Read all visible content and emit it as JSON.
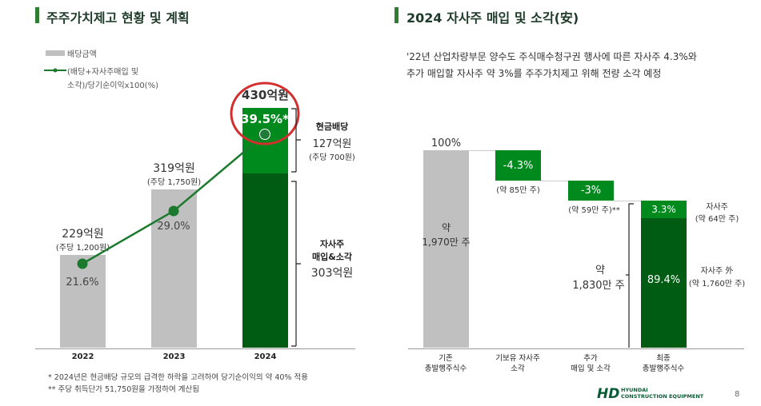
{
  "left": {
    "title": "주주가치제고 현황 및 계획",
    "legend_bar": "배당금액",
    "legend_line_1": "(배당+자사주매입 및",
    "legend_line_2": "소각)/당기순이익x100(%)",
    "annot_cash_title": "현금배당",
    "annot_cash_value": "127억원",
    "annot_cash_per": "(주당 700원)",
    "annot_buyback_1": "자사주",
    "annot_buyback_2": "매입&소각",
    "annot_buyback_value": "303억원",
    "notes": [
      "* 2024년은 현금배당 규모의 급격한 하락을 고려하여 당기순이익의 약 40% 적용",
      "** 주당 취득단가 51,750원을 가정하여 계산됨"
    ]
  },
  "right": {
    "title": "2024 자사주 매입 및 소각(安)",
    "desc_1": "'22년 산업차량부문 양수도 주식매수청구권 행사에 따른 자사주 4.3%와",
    "desc_2": "추가 매입할 자사주 약 3%를 주주가치제고 위해 전량 소각 예정",
    "brace_label_1": "약",
    "brace_label_2": "1,830만 주"
  },
  "footer": {
    "logo": "HD",
    "logo_sub_1": "HYUNDAI",
    "logo_sub_2": "CONSTRUCTION EQUIPMENT",
    "page": "8"
  },
  "colors": {
    "gray": "#c0c0c0",
    "green": "#008a1e",
    "dark_green": "#005c12",
    "line": "#1b7a2e",
    "highlight": "#d32f2f"
  },
  "chart_data": [
    {
      "type": "bar",
      "title": "",
      "categories": [
        "2022",
        "2023",
        "2024"
      ],
      "series": [
        {
          "name": "배당금액",
          "values": [
            229,
            319,
            127
          ]
        },
        {
          "name": "자사주 매입&소각",
          "values": [
            0,
            0,
            303
          ]
        }
      ],
      "line": {
        "name": "(배당+자사주매입 및 소각)/당기순이익x100(%)",
        "values": [
          21.6,
          29.0,
          39.5
        ]
      },
      "bar_labels": [
        "229억원",
        "319억원",
        "430억원"
      ],
      "bar_sublabels": [
        "(주당 1,200원)",
        "(주당 1,750원)",
        ""
      ],
      "line_labels": [
        "21.6%",
        "29.0%",
        "39.5%*"
      ],
      "ylim": [
        0,
        450
      ]
    },
    {
      "type": "bar",
      "subtype": "waterfall",
      "categories": [
        "기존\n총발행주식수",
        "기보유 자사주\n소각",
        "추가\n매입 및 소각",
        "최종\n총발행주식수"
      ],
      "values": [
        100,
        -4.3,
        -3,
        92.7
      ],
      "labels": [
        "100%",
        "-4.3%",
        "-3%"
      ],
      "inner_labels": [
        "약\n1,970만 주"
      ],
      "sub_labels": [
        "",
        "(약 85만 주)",
        "(약 59만 주)**",
        ""
      ],
      "final_stack": [
        {
          "label": "3.3%",
          "value": 3.3,
          "side_1": "자사주",
          "side_2": "(약 64만 주)"
        },
        {
          "label": "89.4%",
          "value": 89.4,
          "side_1": "자사주 外",
          "side_2": "(약 1,760만 주)"
        }
      ],
      "ylim": [
        0,
        100
      ]
    }
  ]
}
